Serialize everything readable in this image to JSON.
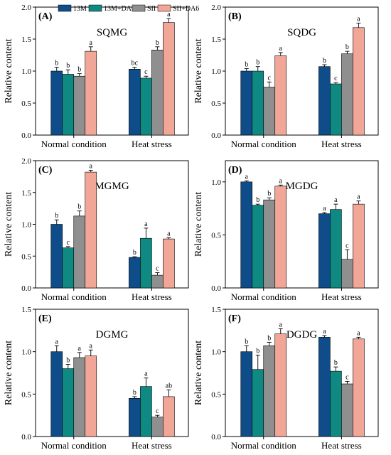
{
  "legend": {
    "items": [
      {
        "label": "13M",
        "color": "#0f4c8a"
      },
      {
        "label": "13M+DA6",
        "color": "#0f8a82"
      },
      {
        "label": "SII",
        "color": "#8f8f8f"
      },
      {
        "label": "SII+DA6",
        "color": "#f2a698"
      }
    ]
  },
  "chart_data": [
    {
      "type": "bar",
      "panel_label": "(A)",
      "title": "SQMG",
      "ylabel": "Relative content",
      "ylim": [
        0,
        2.0
      ],
      "yticks": [
        "0.0",
        "0.5",
        "1.0",
        "1.5",
        "2.0"
      ],
      "categories": [
        "Normal condition",
        "Heat stress"
      ],
      "series": [
        {
          "name": "13M",
          "color": "#0f4c8a",
          "values": [
            1.0,
            1.03
          ],
          "errors": [
            0.06,
            0.03
          ],
          "letters": [
            "b",
            "bc"
          ]
        },
        {
          "name": "13M+DA6",
          "color": "#0f8a82",
          "values": [
            0.95,
            0.89
          ],
          "errors": [
            0.07,
            0.03
          ],
          "letters": [
            "b",
            "c"
          ]
        },
        {
          "name": "SII",
          "color": "#8f8f8f",
          "values": [
            0.92,
            1.33
          ],
          "errors": [
            0.04,
            0.05
          ],
          "letters": [
            "b",
            "b"
          ]
        },
        {
          "name": "SII+DA6",
          "color": "#f2a698",
          "values": [
            1.31,
            1.76
          ],
          "errors": [
            0.07,
            0.06
          ],
          "letters": [
            "a",
            "a"
          ]
        }
      ]
    },
    {
      "type": "bar",
      "panel_label": "(B)",
      "title": "SQDG",
      "ylabel": "Relative content",
      "ylim": [
        0,
        2.0
      ],
      "yticks": [
        "0.0",
        "0.5",
        "1.0",
        "1.5",
        "2.0"
      ],
      "categories": [
        "Normal condition",
        "Heat stress"
      ],
      "series": [
        {
          "name": "13M",
          "color": "#0f4c8a",
          "values": [
            1.0,
            1.07
          ],
          "errors": [
            0.04,
            0.03
          ],
          "letters": [
            "b",
            "b"
          ]
        },
        {
          "name": "13M+DA6",
          "color": "#0f8a82",
          "values": [
            1.0,
            0.8
          ],
          "errors": [
            0.07,
            0.02
          ],
          "letters": [
            "b",
            "c"
          ]
        },
        {
          "name": "SII",
          "color": "#8f8f8f",
          "values": [
            0.75,
            1.27
          ],
          "errors": [
            0.08,
            0.04
          ],
          "letters": [
            "c",
            "b"
          ]
        },
        {
          "name": "SII+DA6",
          "color": "#f2a698",
          "values": [
            1.24,
            1.68
          ],
          "errors": [
            0.05,
            0.07
          ],
          "letters": [
            "a",
            "a"
          ]
        }
      ]
    },
    {
      "type": "bar",
      "panel_label": "(C)",
      "title": "MGMG",
      "ylabel": "Relative content",
      "ylim": [
        0,
        2.0
      ],
      "yticks": [
        "0.0",
        "0.5",
        "1.0",
        "1.5",
        "2.0"
      ],
      "categories": [
        "Normal condition",
        "Heat stress"
      ],
      "series": [
        {
          "name": "13M",
          "color": "#0f4c8a",
          "values": [
            1.0,
            0.48
          ],
          "errors": [
            0.07,
            0.01
          ],
          "letters": [
            "b",
            "b"
          ]
        },
        {
          "name": "13M+DA6",
          "color": "#0f8a82",
          "values": [
            0.63,
            0.78
          ],
          "errors": [
            0.02,
            0.16
          ],
          "letters": [
            "c",
            "a"
          ]
        },
        {
          "name": "SII",
          "color": "#8f8f8f",
          "values": [
            1.13,
            0.2
          ],
          "errors": [
            0.08,
            0.04
          ],
          "letters": [
            "b",
            "c"
          ]
        },
        {
          "name": "SII+DA6",
          "color": "#f2a698",
          "values": [
            1.82,
            0.77
          ],
          "errors": [
            0.03,
            0.02
          ],
          "letters": [
            "a",
            "a"
          ]
        }
      ]
    },
    {
      "type": "bar",
      "panel_label": "(D)",
      "title": "MGDG",
      "ylabel": "Relative content",
      "ylim": [
        0,
        1.2
      ],
      "yticks": [
        "0.0",
        "0.5",
        "1.0"
      ],
      "categories": [
        "Normal condition",
        "Heat stress"
      ],
      "series": [
        {
          "name": "13M",
          "color": "#0f4c8a",
          "values": [
            1.0,
            0.7
          ],
          "errors": [
            0.01,
            0.01
          ],
          "letters": [
            "a",
            "a"
          ]
        },
        {
          "name": "13M+DA6",
          "color": "#0f8a82",
          "values": [
            0.78,
            0.74
          ],
          "errors": [
            0.01,
            0.05
          ],
          "letters": [
            "b",
            "a"
          ]
        },
        {
          "name": "SII",
          "color": "#8f8f8f",
          "values": [
            0.83,
            0.27
          ],
          "errors": [
            0.02,
            0.09
          ],
          "letters": [
            "b",
            "c"
          ]
        },
        {
          "name": "SII+DA6",
          "color": "#f2a698",
          "values": [
            0.96,
            0.79
          ],
          "errors": [
            0.01,
            0.03
          ],
          "letters": [
            "a",
            "a"
          ]
        }
      ]
    },
    {
      "type": "bar",
      "panel_label": "(E)",
      "title": "DGMG",
      "ylabel": "Relative content",
      "ylim": [
        0,
        1.5
      ],
      "yticks": [
        "0.0",
        "0.5",
        "1.0",
        "1.5"
      ],
      "categories": [
        "Normal condition",
        "Heat stress"
      ],
      "series": [
        {
          "name": "13M",
          "color": "#0f4c8a",
          "values": [
            1.0,
            0.45
          ],
          "errors": [
            0.07,
            0.02
          ],
          "letters": [
            "a",
            "b"
          ]
        },
        {
          "name": "13M+DA6",
          "color": "#0f8a82",
          "values": [
            0.8,
            0.59
          ],
          "errors": [
            0.05,
            0.1
          ],
          "letters": [
            "b",
            "a"
          ]
        },
        {
          "name": "SII",
          "color": "#8f8f8f",
          "values": [
            0.93,
            0.23
          ],
          "errors": [
            0.06,
            0.02
          ],
          "letters": [
            "a",
            "c"
          ]
        },
        {
          "name": "SII+DA6",
          "color": "#f2a698",
          "values": [
            0.95,
            0.47
          ],
          "errors": [
            0.07,
            0.08
          ],
          "letters": [
            "a",
            "ab"
          ]
        }
      ]
    },
    {
      "type": "bar",
      "panel_label": "(F)",
      "title": "DGDG",
      "ylabel": "Relative content",
      "ylim": [
        0,
        1.5
      ],
      "yticks": [
        "0.0",
        "0.5",
        "1.0",
        "1.5"
      ],
      "categories": [
        "Normal condition",
        "Heat stress"
      ],
      "series": [
        {
          "name": "13M",
          "color": "#0f4c8a",
          "values": [
            1.0,
            1.17
          ],
          "errors": [
            0.07,
            0.02
          ],
          "letters": [
            "b",
            "a"
          ]
        },
        {
          "name": "13M+DA6",
          "color": "#0f8a82",
          "values": [
            0.79,
            0.77
          ],
          "errors": [
            0.17,
            0.05
          ],
          "letters": [
            "b",
            "b"
          ]
        },
        {
          "name": "SII",
          "color": "#8f8f8f",
          "values": [
            1.07,
            0.62
          ],
          "errors": [
            0.04,
            0.03
          ],
          "letters": [
            "b",
            "c"
          ]
        },
        {
          "name": "SII+DA6",
          "color": "#f2a698",
          "values": [
            1.21,
            1.15
          ],
          "errors": [
            0.06,
            0.02
          ],
          "letters": [
            "a",
            "a"
          ]
        }
      ]
    }
  ]
}
